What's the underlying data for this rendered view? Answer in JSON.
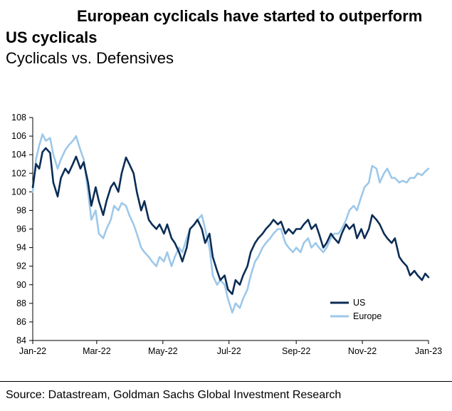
{
  "title": "European cyclicals have started to outperform US cyclicals",
  "subtitle": "Cyclicals vs. Defensives",
  "source": "Source: Datastream, Goldman Sachs Global Investment Research",
  "colors": {
    "us": "#0b2d55",
    "europe": "#9dc8ea",
    "axis": "#000000"
  },
  "chart_data": {
    "type": "line",
    "title": "European cyclicals have started to outperform US cyclicals",
    "subtitle": "Cyclicals vs. Defensives",
    "xlabel": "",
    "ylabel": "",
    "ylim": [
      84,
      108
    ],
    "yticks": [
      84,
      86,
      88,
      90,
      92,
      94,
      96,
      98,
      100,
      102,
      104,
      106,
      108
    ],
    "xlim": [
      "2022-01-01",
      "2023-01-01"
    ],
    "xticks": [
      {
        "label": "Jan-22",
        "date": "2022-01-01"
      },
      {
        "label": "Mar-22",
        "date": "2022-03-01"
      },
      {
        "label": "May-22",
        "date": "2022-05-01"
      },
      {
        "label": "Jul-22",
        "date": "2022-07-01"
      },
      {
        "label": "Sep-22",
        "date": "2022-09-01"
      },
      {
        "label": "Nov-22",
        "date": "2022-11-01"
      },
      {
        "label": "Jan-23",
        "date": "2023-01-01"
      }
    ],
    "grid": false,
    "legend": "bottom-right",
    "series": [
      {
        "name": "US",
        "color": "#0b2d55",
        "points": [
          [
            "2022-01-01",
            100.5
          ],
          [
            "2022-01-04",
            103.0
          ],
          [
            "2022-01-07",
            102.5
          ],
          [
            "2022-01-10",
            104.3
          ],
          [
            "2022-01-13",
            104.7
          ],
          [
            "2022-01-17",
            104.2
          ],
          [
            "2022-01-20",
            101.0
          ],
          [
            "2022-01-24",
            99.5
          ],
          [
            "2022-01-27",
            101.5
          ],
          [
            "2022-01-31",
            102.5
          ],
          [
            "2022-02-03",
            102.0
          ],
          [
            "2022-02-07",
            103.0
          ],
          [
            "2022-02-10",
            103.8
          ],
          [
            "2022-02-14",
            102.5
          ],
          [
            "2022-02-17",
            103.2
          ],
          [
            "2022-02-21",
            101.0
          ],
          [
            "2022-02-24",
            98.5
          ],
          [
            "2022-02-28",
            100.5
          ],
          [
            "2022-03-03",
            99.0
          ],
          [
            "2022-03-07",
            97.5
          ],
          [
            "2022-03-10",
            99.0
          ],
          [
            "2022-03-14",
            100.5
          ],
          [
            "2022-03-17",
            101.0
          ],
          [
            "2022-03-21",
            100.0
          ],
          [
            "2022-03-24",
            102.0
          ],
          [
            "2022-03-28",
            103.7
          ],
          [
            "2022-03-31",
            103.0
          ],
          [
            "2022-04-04",
            102.0
          ],
          [
            "2022-04-07",
            100.0
          ],
          [
            "2022-04-11",
            98.0
          ],
          [
            "2022-04-14",
            99.0
          ],
          [
            "2022-04-18",
            97.0
          ],
          [
            "2022-04-21",
            96.5
          ],
          [
            "2022-04-25",
            96.0
          ],
          [
            "2022-04-28",
            96.5
          ],
          [
            "2022-05-02",
            95.5
          ],
          [
            "2022-05-05",
            96.5
          ],
          [
            "2022-05-09",
            95.0
          ],
          [
            "2022-05-12",
            94.5
          ],
          [
            "2022-05-16",
            93.5
          ],
          [
            "2022-05-19",
            92.5
          ],
          [
            "2022-05-23",
            94.0
          ],
          [
            "2022-05-26",
            96.0
          ],
          [
            "2022-05-30",
            96.5
          ],
          [
            "2022-06-02",
            97.0
          ],
          [
            "2022-06-06",
            96.0
          ],
          [
            "2022-06-09",
            94.5
          ],
          [
            "2022-06-13",
            95.5
          ],
          [
            "2022-06-16",
            93.0
          ],
          [
            "2022-06-20",
            91.5
          ],
          [
            "2022-06-23",
            90.5
          ],
          [
            "2022-06-27",
            91.0
          ],
          [
            "2022-06-30",
            89.5
          ],
          [
            "2022-07-04",
            89.0
          ],
          [
            "2022-07-07",
            90.5
          ],
          [
            "2022-07-11",
            90.0
          ],
          [
            "2022-07-14",
            91.0
          ],
          [
            "2022-07-18",
            92.0
          ],
          [
            "2022-07-21",
            93.5
          ],
          [
            "2022-07-25",
            94.5
          ],
          [
            "2022-07-28",
            95.0
          ],
          [
            "2022-08-01",
            95.5
          ],
          [
            "2022-08-04",
            96.0
          ],
          [
            "2022-08-08",
            96.5
          ],
          [
            "2022-08-11",
            97.0
          ],
          [
            "2022-08-15",
            96.5
          ],
          [
            "2022-08-18",
            96.8
          ],
          [
            "2022-08-22",
            95.5
          ],
          [
            "2022-08-25",
            96.0
          ],
          [
            "2022-08-29",
            95.5
          ],
          [
            "2022-09-01",
            96.0
          ],
          [
            "2022-09-05",
            96.0
          ],
          [
            "2022-09-08",
            96.5
          ],
          [
            "2022-09-12",
            97.0
          ],
          [
            "2022-09-15",
            96.0
          ],
          [
            "2022-09-19",
            96.5
          ],
          [
            "2022-09-22",
            95.5
          ],
          [
            "2022-09-26",
            94.0
          ],
          [
            "2022-09-29",
            94.5
          ],
          [
            "2022-10-03",
            95.5
          ],
          [
            "2022-10-06",
            95.0
          ],
          [
            "2022-10-10",
            94.5
          ],
          [
            "2022-10-13",
            95.5
          ],
          [
            "2022-10-17",
            96.5
          ],
          [
            "2022-10-20",
            96.0
          ],
          [
            "2022-10-24",
            96.5
          ],
          [
            "2022-10-27",
            95.0
          ],
          [
            "2022-10-31",
            96.0
          ],
          [
            "2022-11-03",
            95.0
          ],
          [
            "2022-11-07",
            96.0
          ],
          [
            "2022-11-10",
            97.5
          ],
          [
            "2022-11-14",
            97.0
          ],
          [
            "2022-11-17",
            96.5
          ],
          [
            "2022-11-21",
            95.5
          ],
          [
            "2022-11-24",
            95.0
          ],
          [
            "2022-11-28",
            94.5
          ],
          [
            "2022-12-01",
            95.0
          ],
          [
            "2022-12-05",
            93.0
          ],
          [
            "2022-12-08",
            92.5
          ],
          [
            "2022-12-12",
            92.0
          ],
          [
            "2022-12-15",
            91.0
          ],
          [
            "2022-12-19",
            91.5
          ],
          [
            "2022-12-22",
            91.0
          ],
          [
            "2022-12-26",
            90.5
          ],
          [
            "2022-12-29",
            91.2
          ],
          [
            "2023-01-01",
            90.8
          ]
        ]
      },
      {
        "name": "Europe",
        "color": "#9dc8ea",
        "points": [
          [
            "2022-01-01",
            100.0
          ],
          [
            "2022-01-04",
            103.5
          ],
          [
            "2022-01-07",
            105.0
          ],
          [
            "2022-01-10",
            106.2
          ],
          [
            "2022-01-13",
            105.5
          ],
          [
            "2022-01-17",
            105.8
          ],
          [
            "2022-01-20",
            104.0
          ],
          [
            "2022-01-24",
            102.5
          ],
          [
            "2022-01-27",
            103.5
          ],
          [
            "2022-01-31",
            104.5
          ],
          [
            "2022-02-03",
            105.0
          ],
          [
            "2022-02-07",
            105.5
          ],
          [
            "2022-02-10",
            106.0
          ],
          [
            "2022-02-14",
            104.5
          ],
          [
            "2022-02-17",
            103.5
          ],
          [
            "2022-02-21",
            100.0
          ],
          [
            "2022-02-24",
            97.0
          ],
          [
            "2022-02-28",
            98.0
          ],
          [
            "2022-03-03",
            95.5
          ],
          [
            "2022-03-07",
            95.0
          ],
          [
            "2022-03-10",
            96.0
          ],
          [
            "2022-03-14",
            97.0
          ],
          [
            "2022-03-17",
            98.5
          ],
          [
            "2022-03-21",
            98.0
          ],
          [
            "2022-03-24",
            98.8
          ],
          [
            "2022-03-28",
            98.5
          ],
          [
            "2022-03-31",
            97.5
          ],
          [
            "2022-04-04",
            96.5
          ],
          [
            "2022-04-07",
            95.5
          ],
          [
            "2022-04-11",
            94.0
          ],
          [
            "2022-04-14",
            93.5
          ],
          [
            "2022-04-18",
            93.0
          ],
          [
            "2022-04-21",
            92.5
          ],
          [
            "2022-04-25",
            92.0
          ],
          [
            "2022-04-28",
            93.0
          ],
          [
            "2022-05-02",
            92.5
          ],
          [
            "2022-05-05",
            93.5
          ],
          [
            "2022-05-09",
            92.0
          ],
          [
            "2022-05-12",
            93.0
          ],
          [
            "2022-05-16",
            94.0
          ],
          [
            "2022-05-19",
            93.5
          ],
          [
            "2022-05-23",
            95.0
          ],
          [
            "2022-05-26",
            96.0
          ],
          [
            "2022-05-30",
            96.5
          ],
          [
            "2022-06-02",
            97.0
          ],
          [
            "2022-06-06",
            97.5
          ],
          [
            "2022-06-09",
            96.0
          ],
          [
            "2022-06-13",
            94.0
          ],
          [
            "2022-06-16",
            91.0
          ],
          [
            "2022-06-20",
            90.0
          ],
          [
            "2022-06-23",
            90.5
          ],
          [
            "2022-06-27",
            90.0
          ],
          [
            "2022-06-30",
            88.5
          ],
          [
            "2022-07-04",
            87.0
          ],
          [
            "2022-07-07",
            88.0
          ],
          [
            "2022-07-11",
            87.5
          ],
          [
            "2022-07-14",
            88.5
          ],
          [
            "2022-07-18",
            89.5
          ],
          [
            "2022-07-21",
            91.0
          ],
          [
            "2022-07-25",
            92.5
          ],
          [
            "2022-07-28",
            93.0
          ],
          [
            "2022-08-01",
            94.0
          ],
          [
            "2022-08-04",
            94.5
          ],
          [
            "2022-08-08",
            95.0
          ],
          [
            "2022-08-11",
            95.5
          ],
          [
            "2022-08-15",
            96.0
          ],
          [
            "2022-08-18",
            96.0
          ],
          [
            "2022-08-22",
            94.5
          ],
          [
            "2022-08-25",
            94.0
          ],
          [
            "2022-08-29",
            93.5
          ],
          [
            "2022-09-01",
            94.0
          ],
          [
            "2022-09-05",
            93.5
          ],
          [
            "2022-09-08",
            94.5
          ],
          [
            "2022-09-12",
            95.0
          ],
          [
            "2022-09-15",
            94.0
          ],
          [
            "2022-09-19",
            94.5
          ],
          [
            "2022-09-22",
            94.0
          ],
          [
            "2022-09-26",
            93.5
          ],
          [
            "2022-09-29",
            94.0
          ],
          [
            "2022-10-03",
            95.0
          ],
          [
            "2022-10-06",
            95.5
          ],
          [
            "2022-10-10",
            95.5
          ],
          [
            "2022-10-13",
            96.0
          ],
          [
            "2022-10-17",
            97.0
          ],
          [
            "2022-10-20",
            98.0
          ],
          [
            "2022-10-24",
            98.5
          ],
          [
            "2022-10-27",
            98.0
          ],
          [
            "2022-10-31",
            99.5
          ],
          [
            "2022-11-03",
            100.5
          ],
          [
            "2022-11-07",
            101.0
          ],
          [
            "2022-11-10",
            102.8
          ],
          [
            "2022-11-14",
            102.5
          ],
          [
            "2022-11-17",
            101.0
          ],
          [
            "2022-11-21",
            102.0
          ],
          [
            "2022-11-24",
            102.5
          ],
          [
            "2022-11-28",
            101.5
          ],
          [
            "2022-12-01",
            101.5
          ],
          [
            "2022-12-05",
            101.0
          ],
          [
            "2022-12-08",
            101.2
          ],
          [
            "2022-12-12",
            101.0
          ],
          [
            "2022-12-15",
            101.5
          ],
          [
            "2022-12-19",
            101.5
          ],
          [
            "2022-12-22",
            102.0
          ],
          [
            "2022-12-26",
            101.8
          ],
          [
            "2022-12-29",
            102.2
          ],
          [
            "2023-01-01",
            102.5
          ]
        ]
      }
    ]
  }
}
